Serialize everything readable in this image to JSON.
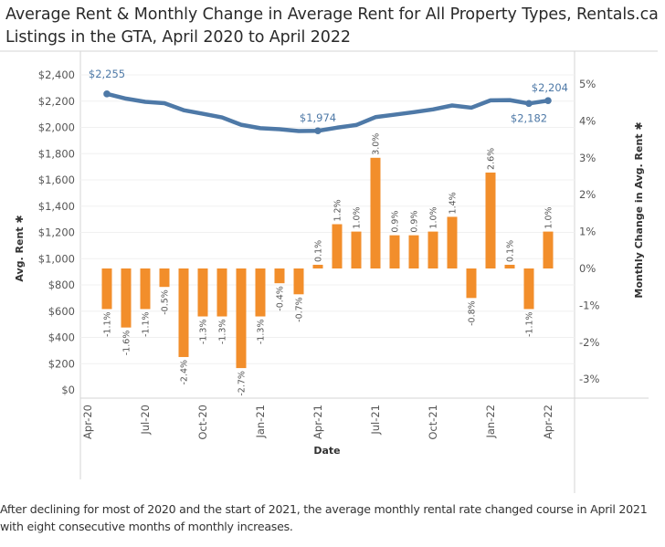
{
  "title": "Average Rent & Monthly Change in Average Rent for All Property Types, Rentals.ca Listings in the GTA, April 2020 to April 2022",
  "caption": "After declining for most of 2020 and the start of 2021, the average monthly rental rate changed course in April 2021 with eight consecutive months of  monthly increases.",
  "chart_data": {
    "type": "bar+line",
    "title": "Average Rent & Monthly Change in Average Rent for All Property Types, Rentals.ca Listings in the GTA, April 2020 to April 2022",
    "xlabel": "Date",
    "ylabel_left": "Avg. Rent",
    "ylabel_right": "Monthly Change in Avg. Rent",
    "x": [
      "May-20",
      "Jun-20",
      "Jul-20",
      "Aug-20",
      "Sep-20",
      "Oct-20",
      "Nov-20",
      "Dec-20",
      "Jan-21",
      "Feb-21",
      "Mar-21",
      "Apr-21",
      "May-21",
      "Jun-21",
      "Jul-21",
      "Aug-21",
      "Sep-21",
      "Oct-21",
      "Nov-21",
      "Dec-21",
      "Jan-22",
      "Feb-22",
      "Mar-22",
      "Apr-22"
    ],
    "x_tick_labels": [
      "Apr-20",
      "Jul-20",
      "Oct-20",
      "Jan-21",
      "Apr-21",
      "Jul-21",
      "Oct-21",
      "Jan-22",
      "Apr-22"
    ],
    "y_left_ticks": [
      "$2,400",
      "$2,200",
      "$2,000",
      "$1,800",
      "$1,600",
      "$1,400",
      "$1,200",
      "$1,000",
      "$800",
      "$600",
      "$400",
      "$200",
      "$0"
    ],
    "y_left_range": [
      0,
      2400
    ],
    "y_right_ticks": [
      "5%",
      "4%",
      "3%",
      "2%",
      "1%",
      "0%",
      "-1%",
      "-2%",
      "-3%"
    ],
    "y_right_range": [
      -3.3,
      5.0
    ],
    "grid": true,
    "legend": "none",
    "series": [
      {
        "name": "Avg. Rent",
        "type": "line",
        "axis": "left",
        "color": "#4e79a7",
        "values": [
          2255,
          2219,
          2195,
          2184,
          2131,
          2104,
          2076,
          2020,
          1994,
          1986,
          1972,
          1974,
          1998,
          2018,
          2078,
          2097,
          2116,
          2137,
          2167,
          2150,
          2206,
          2208,
          2182,
          2204
        ],
        "annotations": [
          {
            "index": 0,
            "label": "$2,255",
            "position": "above"
          },
          {
            "index": 11,
            "label": "$1,974",
            "position": "above"
          },
          {
            "index": 22,
            "label": "$2,182",
            "position": "below"
          },
          {
            "index": 23,
            "label": "$2,204",
            "position": "above"
          }
        ]
      },
      {
        "name": "Monthly Change in Avg. Rent",
        "type": "bar",
        "axis": "right",
        "color": "#f28e2b",
        "values": [
          -1.1,
          -1.6,
          -1.1,
          -0.5,
          -2.4,
          -1.3,
          -1.3,
          -2.7,
          -1.3,
          -0.4,
          -0.7,
          0.1,
          1.2,
          1.0,
          3.0,
          0.9,
          0.9,
          1.0,
          1.4,
          -0.8,
          2.6,
          0.1,
          -1.1,
          1.0
        ],
        "labels": [
          "-1.1%",
          "-1.6%",
          "-1.1%",
          "-0.5%",
          "-2.4%",
          "-1.3%",
          "-1.3%",
          "-2.7%",
          "-1.3%",
          "-0.4%",
          "-0.7%",
          "0.1%",
          "1.2%",
          "1.0%",
          "3.0%",
          "0.9%",
          "0.9%",
          "1.0%",
          "1.4%",
          "-0.8%",
          "2.6%",
          "0.1%",
          "-1.1%",
          "1.0%"
        ]
      }
    ]
  }
}
